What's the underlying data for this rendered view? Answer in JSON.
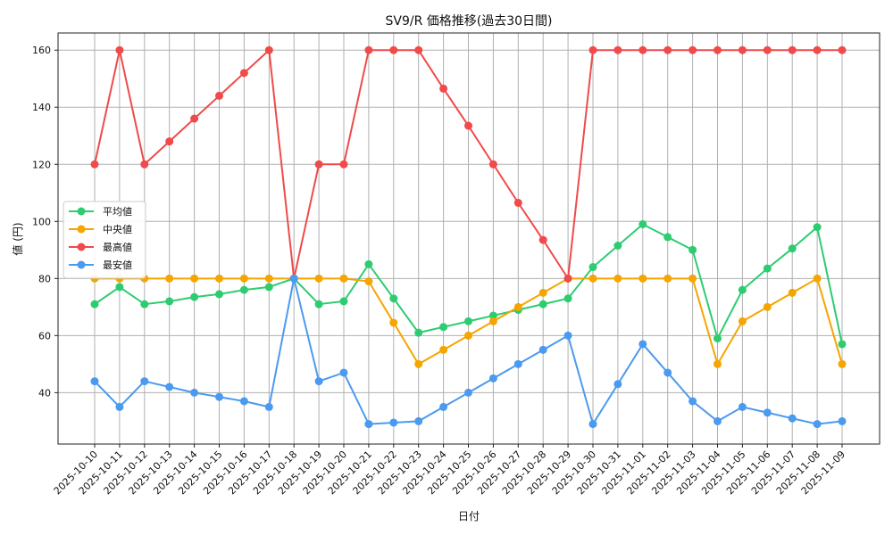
{
  "chart_data": {
    "type": "line",
    "title": "SV9/R 価格推移(過去30日間)",
    "xlabel": "日付",
    "ylabel": "値 (円)",
    "grid": true,
    "legend_position": "center-left",
    "ylim": [
      22,
      166
    ],
    "yticks": [
      40,
      60,
      80,
      100,
      120,
      140,
      160
    ],
    "x": [
      "2025-10-10",
      "2025-10-11",
      "2025-10-12",
      "2025-10-13",
      "2025-10-14",
      "2025-10-15",
      "2025-10-16",
      "2025-10-17",
      "2025-10-18",
      "2025-10-19",
      "2025-10-20",
      "2025-10-21",
      "2025-10-22",
      "2025-10-23",
      "2025-10-24",
      "2025-10-25",
      "2025-10-26",
      "2025-10-27",
      "2025-10-28",
      "2025-10-29",
      "2025-10-30",
      "2025-10-31",
      "2025-11-01",
      "2025-11-02",
      "2025-11-03",
      "2025-11-04",
      "2025-11-05",
      "2025-11-06",
      "2025-11-07",
      "2025-11-08",
      "2025-11-09"
    ],
    "series": [
      {
        "name": "平均値",
        "color": "#2ecc71",
        "values": [
          71,
          77,
          71,
          72,
          73.5,
          74.5,
          76,
          77,
          80,
          71,
          72,
          85,
          73,
          61,
          63,
          65,
          67,
          69,
          71,
          73,
          84,
          91.5,
          99,
          94.5,
          90,
          59,
          76,
          83.5,
          90.5,
          98,
          57
        ]
      },
      {
        "name": "中央値",
        "color": "#f5a500",
        "values": [
          80,
          80,
          80,
          80,
          80,
          80,
          80,
          80,
          80,
          80,
          80,
          79,
          64.5,
          50,
          55,
          60,
          65,
          70,
          75,
          80,
          80,
          80,
          80,
          80,
          80,
          50,
          65,
          70,
          75,
          80,
          50
        ]
      },
      {
        "name": "最高値",
        "color": "#f04a4a",
        "values": [
          120,
          160,
          120,
          128,
          136,
          144,
          152,
          160,
          80,
          120,
          120,
          160,
          160,
          160,
          146.5,
          133.5,
          120,
          106.5,
          93.5,
          80,
          160,
          160,
          160,
          160,
          160,
          160,
          160,
          160,
          160,
          160,
          160
        ]
      },
      {
        "name": "最安値",
        "color": "#4a9af0",
        "values": [
          44,
          35,
          44,
          42,
          40,
          38.5,
          37,
          35,
          80,
          44,
          47,
          29,
          29.5,
          30,
          35,
          40,
          45,
          50,
          55,
          60,
          29,
          43,
          57,
          47,
          37,
          30,
          35,
          33,
          31,
          29,
          30
        ]
      }
    ]
  }
}
